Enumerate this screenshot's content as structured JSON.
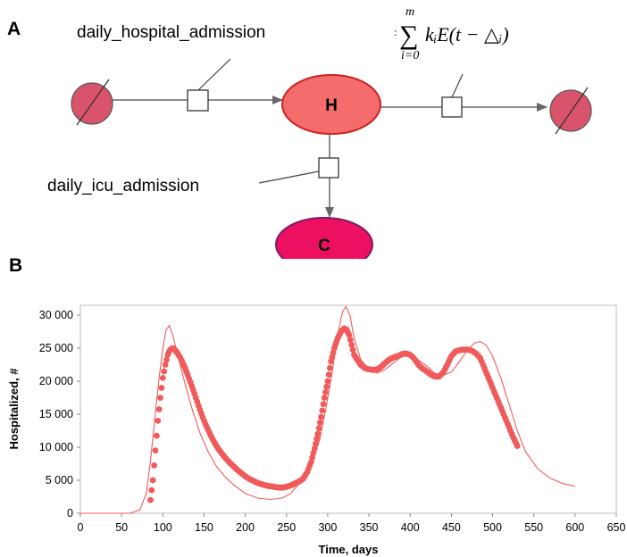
{
  "panel_a": {
    "letter": "A",
    "nodes": {
      "h_label": "H",
      "c_label": "C"
    },
    "flows": {
      "hospital_admission": "daily_hospital_admission",
      "icu_admission": "daily_icu_admission"
    },
    "formula": {
      "upper": "m",
      "sigma": "∑",
      "lower": "i=0",
      "term": "kᵢE(t − △ᵢ)",
      "prefix": ":"
    },
    "colors": {
      "source_sink_fill": "#d9536a",
      "h_fill": "#f56c6c",
      "h_stroke": "#cc2222",
      "c_fill": "#ee1060",
      "c_stroke": "#7a1a6a",
      "flow_line": "#666666"
    }
  },
  "panel_b": {
    "letter": "B"
  },
  "chart_data": {
    "type": "line",
    "title": "",
    "xlabel": "Time, days",
    "ylabel": "Hospitalized, #",
    "xlim": [
      0,
      650
    ],
    "ylim": [
      0,
      31500
    ],
    "x_ticks": [
      0,
      50,
      100,
      150,
      200,
      250,
      300,
      350,
      400,
      450,
      500,
      550,
      600,
      650
    ],
    "x_tick_labels": [
      "0",
      "50",
      "100",
      "150",
      "200",
      "250",
      "300",
      "350",
      "400",
      "450",
      "500",
      "550",
      "600",
      "650"
    ],
    "y_ticks": [
      0,
      5000,
      10000,
      15000,
      20000,
      25000,
      30000
    ],
    "y_tick_labels": [
      "0",
      "5 000",
      "10 000",
      "15 000",
      "20 000",
      "25 000",
      "30 000"
    ],
    "grid": false,
    "series_color": "#f05a5a",
    "series": [
      {
        "style": "dots",
        "x": [
          85,
          88,
          91,
          94,
          97,
          100,
          103,
          106,
          109,
          112,
          115,
          118,
          121,
          124,
          127,
          130,
          135,
          140,
          145,
          150,
          155,
          160,
          165,
          170,
          175,
          180,
          185,
          190,
          195,
          200,
          205,
          210,
          215,
          220,
          225,
          230,
          235,
          240,
          245,
          250,
          255,
          260,
          265,
          270,
          275,
          280,
          284,
          288,
          292,
          296,
          300,
          304,
          308,
          312,
          316,
          320,
          323,
          326,
          329,
          332,
          336,
          340,
          345,
          350,
          355,
          360,
          365,
          370,
          375,
          380,
          385,
          390,
          395,
          400,
          405,
          410,
          415,
          420,
          425,
          430,
          435,
          440,
          445,
          450,
          455,
          460,
          465,
          470,
          475,
          480,
          485,
          490,
          495,
          500,
          505,
          510,
          515,
          520,
          525,
          530
        ],
        "y": [
          2000,
          5000,
          9500,
          14000,
          17500,
          20500,
          22500,
          24000,
          24800,
          25000,
          24700,
          24200,
          23600,
          22800,
          22000,
          21000,
          19300,
          17500,
          15700,
          14000,
          12600,
          11300,
          10200,
          9300,
          8500,
          7800,
          7200,
          6600,
          6100,
          5600,
          5200,
          4900,
          4600,
          4400,
          4200,
          4100,
          4000,
          3900,
          3900,
          4000,
          4200,
          4500,
          4800,
          5200,
          6200,
          7800,
          9800,
          12000,
          14600,
          17500,
          20000,
          23000,
          25000,
          26500,
          27500,
          28000,
          27800,
          27000,
          25500,
          24000,
          23200,
          22500,
          22000,
          21800,
          21700,
          21800,
          22200,
          22800,
          23300,
          23600,
          23800,
          24100,
          24200,
          24000,
          23400,
          22500,
          21900,
          21500,
          21000,
          20700,
          20700,
          21300,
          22500,
          23800,
          24500,
          24700,
          24800,
          24800,
          24600,
          24200,
          23500,
          22000,
          20500,
          19000,
          17500,
          16000,
          14500,
          13000,
          11500,
          10200
        ]
      },
      {
        "style": "line",
        "x": [
          0,
          60,
          72,
          80,
          85,
          90,
          95,
          100,
          104,
          108,
          112,
          118,
          125,
          135,
          145,
          155,
          165,
          175,
          185,
          200,
          215,
          230,
          245,
          255,
          262,
          270,
          280,
          290,
          298,
          305,
          312,
          318,
          322,
          327,
          332,
          340,
          350,
          360,
          370,
          380,
          390,
          400,
          410,
          420,
          430,
          440,
          450,
          460,
          470,
          478,
          485,
          492,
          500,
          510,
          520,
          530,
          540,
          555,
          570,
          585,
          600
        ],
        "y": [
          0,
          0,
          500,
          3000,
          8000,
          14000,
          20000,
          25000,
          27800,
          28400,
          27000,
          24000,
          20500,
          16000,
          12200,
          9300,
          7100,
          5600,
          4400,
          3000,
          2300,
          2100,
          2300,
          3000,
          4000,
          5000,
          7500,
          11000,
          16000,
          21000,
          27000,
          30500,
          31300,
          30000,
          26500,
          23300,
          21800,
          21200,
          21800,
          22800,
          23800,
          24200,
          23200,
          22300,
          21200,
          20900,
          21400,
          23000,
          24800,
          25800,
          26000,
          25500,
          23800,
          20500,
          16500,
          12500,
          9300,
          6700,
          5300,
          4500,
          4100
        ]
      }
    ]
  }
}
